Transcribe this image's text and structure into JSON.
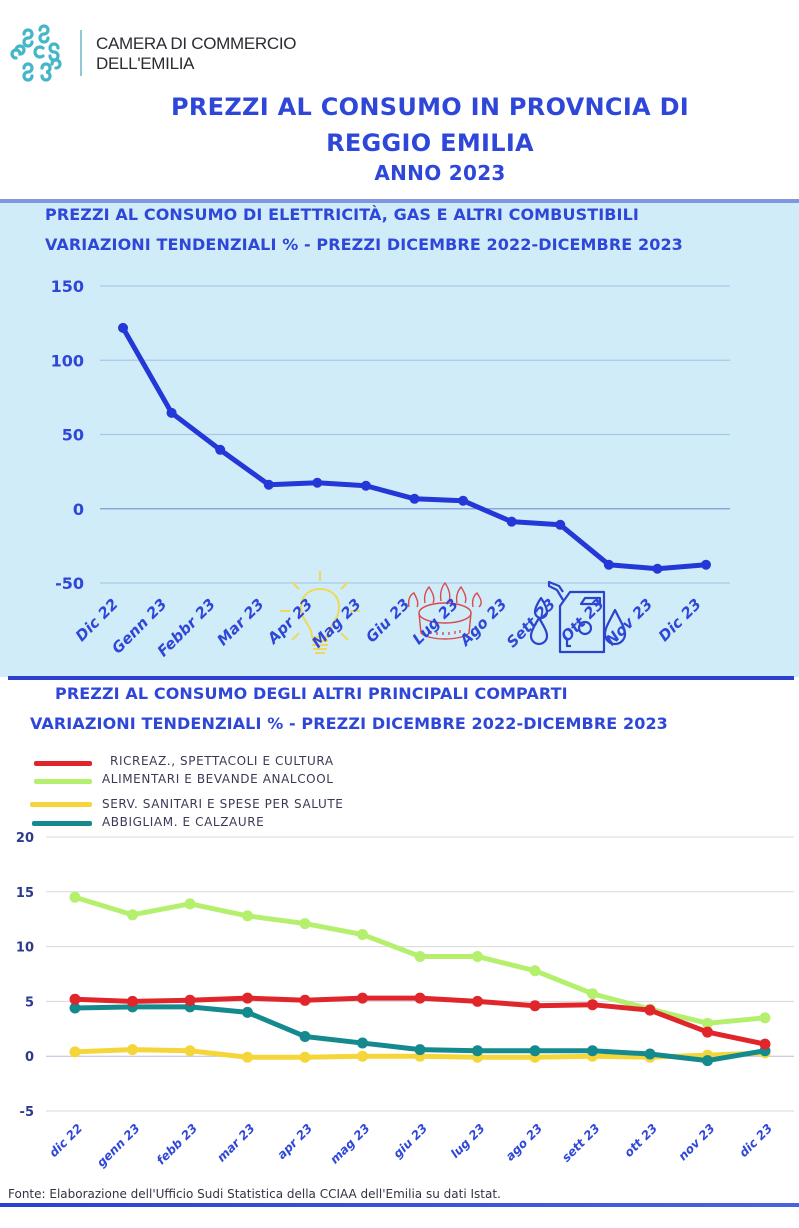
{
  "header": {
    "org_line1": "CAMERA DI COMMERCIO",
    "org_line2": "DELL'EMILIA",
    "logo": "camera-di-commercio-logo",
    "title_line1": "PREZZI AL CONSUMO IN PROVNCIA DI",
    "title_line2": "REGGIO EMILIA",
    "title_line3": "ANNO 2023"
  },
  "colors": {
    "title_blue": "#2f47d8",
    "panel_bg": "#d0ecf8",
    "energy_line": "#2338d6",
    "ricreaz": "#e0252b",
    "alimentari": "#b4f06e",
    "serv_sanitari": "#f5d63a",
    "abbigliam": "#148a8f"
  },
  "icons": [
    "lightbulb-icon",
    "gas-burner-icon",
    "fuel-canister-icon"
  ],
  "chart_data": [
    {
      "type": "line",
      "title": "PREZZI AL CONSUMO DI ELETTRICITÀ, GAS  E ALTRI COMBUSTIBILI",
      "subtitle": "VARIAZIONI  TENDENZIALI %  - PREZZI DICEMBRE 2022-DICEMBRE 2023",
      "xlabel": "",
      "ylabel": "",
      "categories": [
        "Dic 22",
        "Genn 23",
        "Febbr 23",
        "Mar 23",
        "Apr 23",
        "Mag 23",
        "Giu 23",
        "Lug 23",
        "Ago 23",
        "Sett 23",
        "Ott 23",
        "Nov 23",
        "Dic 23"
      ],
      "series": [
        {
          "name": "Elettricità, gas e altri combustibili",
          "values": [
            121.8,
            64.6,
            39.7,
            16.2,
            17.5,
            15.5,
            6.7,
            5.4,
            -8.7,
            -10.8,
            -37.7,
            -40.4,
            -37.7
          ]
        }
      ],
      "yticks": [
        150,
        100,
        50,
        0,
        -50
      ],
      "ylim": [
        -50,
        150
      ],
      "grid": true,
      "legend": "none"
    },
    {
      "type": "line",
      "title": "PREZZI AL CONSUMO DEGLI ALTRI PRINCIPALI COMPARTI",
      "subtitle": "VARIAZIONI  TENDENZIALI %  - PREZZI DICEMBRE 2022-DICEMBRE 2023",
      "xlabel": "",
      "ylabel": "",
      "categories": [
        "dic 22",
        "genn 23",
        "febb 23",
        "mar 23",
        "apr 23",
        "mag 23",
        "giu 23",
        "lug 23",
        "ago 23",
        "sett 23",
        "ott 23",
        "nov 23",
        "dic 23"
      ],
      "series": [
        {
          "name": "RICREAZ., SPETTACOLI E CULTURA",
          "color_key": "ricreaz",
          "values": [
            5.2,
            5.0,
            5.1,
            5.3,
            5.1,
            5.3,
            5.3,
            5.0,
            4.6,
            4.7,
            4.2,
            2.2,
            1.1
          ]
        },
        {
          "name": "ALIMENTARI E BEVANDE ANALCOOL",
          "color_key": "alimentari",
          "values": [
            14.5,
            12.9,
            13.9,
            12.8,
            12.1,
            11.1,
            9.1,
            9.1,
            7.8,
            5.7,
            4.3,
            3.0,
            3.5
          ]
        },
        {
          "name": "SERV. SANITARI E SPESE PER SALUTE",
          "color_key": "serv_sanitari",
          "values": [
            0.4,
            0.6,
            0.5,
            -0.1,
            -0.1,
            0.0,
            0.0,
            -0.1,
            -0.1,
            0.0,
            -0.1,
            0.1,
            0.3
          ]
        },
        {
          "name": "ABBIGLIAM.  E CALZAURE",
          "color_key": "abbigliam",
          "values": [
            4.4,
            4.5,
            4.5,
            4.0,
            1.8,
            1.2,
            0.6,
            0.5,
            0.5,
            0.5,
            0.2,
            -0.4,
            0.5
          ]
        }
      ],
      "yticks": [
        20,
        15,
        10,
        5,
        0,
        -5
      ],
      "ylim": [
        -5,
        20
      ],
      "grid": true,
      "legend": "top-left"
    }
  ],
  "footer": {
    "source": "Fonte: Elaborazione dell'Ufficio Sudi Statistica della CCIAA dell'Emilia su dati Istat."
  }
}
